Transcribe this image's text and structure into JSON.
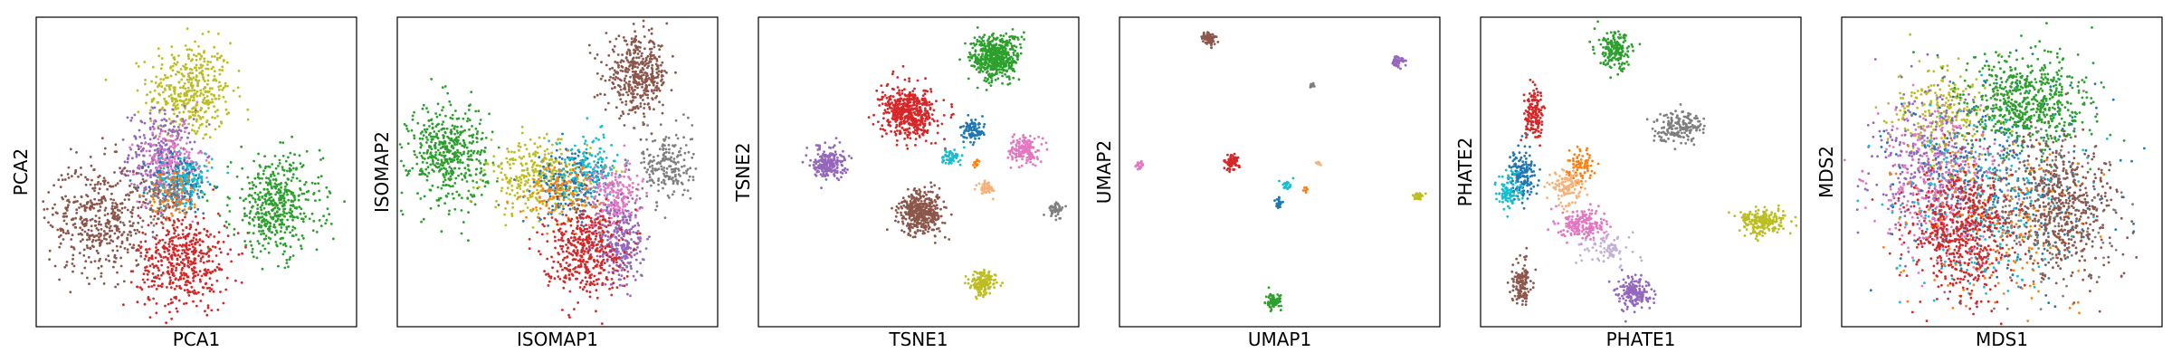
{
  "figure": {
    "description_free": true
  },
  "palette": {
    "blue": "#1f77b4",
    "orange": "#ff7f0e",
    "green": "#2ca02c",
    "red": "#d62728",
    "purple": "#9467bd",
    "brown": "#8c564b",
    "pink": "#e377c2",
    "gray": "#7f7f7f",
    "olive": "#bcbd22",
    "cyan": "#17becf"
  },
  "chart_data": [
    {
      "type": "scatter",
      "xlabel": "PCA1",
      "ylabel": "PCA2",
      "xlim": [
        0,
        1
      ],
      "ylim": [
        0,
        1
      ],
      "xticks": [],
      "yticks": [],
      "clusters": [
        {
          "color": "olive",
          "cx": 0.48,
          "cy": 0.76,
          "sx": 0.065,
          "sy": 0.08,
          "n": 420
        },
        {
          "color": "purple",
          "cx": 0.39,
          "cy": 0.56,
          "sx": 0.05,
          "sy": 0.07,
          "n": 260
        },
        {
          "color": "pink",
          "cx": 0.42,
          "cy": 0.52,
          "sx": 0.05,
          "sy": 0.06,
          "n": 220
        },
        {
          "color": "blue",
          "cx": 0.45,
          "cy": 0.46,
          "sx": 0.05,
          "sy": 0.05,
          "n": 160
        },
        {
          "color": "orange",
          "cx": 0.43,
          "cy": 0.43,
          "sx": 0.04,
          "sy": 0.04,
          "n": 100
        },
        {
          "color": "cyan",
          "cx": 0.47,
          "cy": 0.48,
          "sx": 0.04,
          "sy": 0.04,
          "n": 100
        },
        {
          "color": "gray",
          "cx": 0.4,
          "cy": 0.42,
          "sx": 0.04,
          "sy": 0.04,
          "n": 80
        },
        {
          "color": "brown",
          "cx": 0.2,
          "cy": 0.35,
          "sx": 0.08,
          "sy": 0.09,
          "n": 480
        },
        {
          "color": "red",
          "cx": 0.46,
          "cy": 0.21,
          "sx": 0.07,
          "sy": 0.08,
          "n": 480
        },
        {
          "color": "green",
          "cx": 0.75,
          "cy": 0.39,
          "sx": 0.07,
          "sy": 0.08,
          "n": 480
        }
      ]
    },
    {
      "type": "scatter",
      "xlabel": "ISOMAP1",
      "ylabel": "ISOMAP2",
      "xlim": [
        0,
        1
      ],
      "ylim": [
        0,
        1
      ],
      "xticks": [],
      "yticks": [],
      "clusters": [
        {
          "color": "brown",
          "cx": 0.75,
          "cy": 0.81,
          "sx": 0.05,
          "sy": 0.06,
          "n": 420
        },
        {
          "color": "green",
          "cx": 0.16,
          "cy": 0.56,
          "sx": 0.06,
          "sy": 0.08,
          "n": 480
        },
        {
          "color": "olive",
          "cx": 0.44,
          "cy": 0.48,
          "sx": 0.08,
          "sy": 0.06,
          "n": 320
        },
        {
          "color": "blue",
          "cx": 0.55,
          "cy": 0.46,
          "sx": 0.06,
          "sy": 0.06,
          "n": 200
        },
        {
          "color": "cyan",
          "cx": 0.6,
          "cy": 0.52,
          "sx": 0.05,
          "sy": 0.05,
          "n": 140
        },
        {
          "color": "orange",
          "cx": 0.52,
          "cy": 0.44,
          "sx": 0.06,
          "sy": 0.05,
          "n": 130
        },
        {
          "color": "pink",
          "cx": 0.68,
          "cy": 0.42,
          "sx": 0.04,
          "sy": 0.05,
          "n": 200
        },
        {
          "color": "gray",
          "cx": 0.84,
          "cy": 0.52,
          "sx": 0.04,
          "sy": 0.06,
          "n": 200
        },
        {
          "color": "purple",
          "cx": 0.7,
          "cy": 0.27,
          "sx": 0.035,
          "sy": 0.07,
          "n": 260
        },
        {
          "color": "red",
          "cx": 0.58,
          "cy": 0.25,
          "sx": 0.06,
          "sy": 0.07,
          "n": 440
        }
      ]
    },
    {
      "type": "scatter",
      "xlabel": "TSNE1",
      "ylabel": "TSNE2",
      "xlim": [
        0,
        1
      ],
      "ylim": [
        0,
        1
      ],
      "xticks": [],
      "yticks": [],
      "clusters": [
        {
          "color": "green",
          "cx": 0.74,
          "cy": 0.87,
          "sx": 0.038,
          "sy": 0.038,
          "n": 500
        },
        {
          "color": "red",
          "cx": 0.47,
          "cy": 0.69,
          "sx": 0.042,
          "sy": 0.04,
          "n": 520
        },
        {
          "color": "blue",
          "cx": 0.67,
          "cy": 0.63,
          "sx": 0.018,
          "sy": 0.018,
          "n": 90
        },
        {
          "color": "cyan",
          "cx": 0.6,
          "cy": 0.55,
          "sx": 0.015,
          "sy": 0.015,
          "n": 60
        },
        {
          "color": "orange",
          "cx": 0.68,
          "cy": 0.53,
          "sx": 0.005,
          "sy": 0.005,
          "n": 12
        },
        {
          "color": "pink",
          "cx": 0.83,
          "cy": 0.57,
          "sx": 0.022,
          "sy": 0.022,
          "n": 160
        },
        {
          "color": "purple",
          "cx": 0.22,
          "cy": 0.53,
          "sx": 0.025,
          "sy": 0.025,
          "n": 220
        },
        {
          "color": "sandy",
          "cx": 0.71,
          "cy": 0.45,
          "sx": 0.012,
          "sy": 0.012,
          "n": 50
        },
        {
          "color": "brown",
          "cx": 0.51,
          "cy": 0.37,
          "sx": 0.035,
          "sy": 0.035,
          "n": 420
        },
        {
          "color": "gray",
          "cx": 0.93,
          "cy": 0.38,
          "sx": 0.012,
          "sy": 0.012,
          "n": 50
        },
        {
          "color": "olive",
          "cx": 0.7,
          "cy": 0.14,
          "sx": 0.02,
          "sy": 0.02,
          "n": 150
        }
      ]
    },
    {
      "type": "scatter",
      "xlabel": "UMAP1",
      "ylabel": "UMAP2",
      "xlim": [
        0,
        1
      ],
      "ylim": [
        0,
        1
      ],
      "xticks": [],
      "yticks": [],
      "clusters": [
        {
          "color": "brown",
          "cx": 0.28,
          "cy": 0.93,
          "sx": 0.012,
          "sy": 0.012,
          "n": 70
        },
        {
          "color": "purple",
          "cx": 0.87,
          "cy": 0.86,
          "sx": 0.009,
          "sy": 0.009,
          "n": 45
        },
        {
          "color": "gray",
          "cx": 0.6,
          "cy": 0.78,
          "sx": 0.005,
          "sy": 0.005,
          "n": 14
        },
        {
          "color": "pink",
          "cx": 0.06,
          "cy": 0.52,
          "sx": 0.007,
          "sy": 0.007,
          "n": 25
        },
        {
          "color": "red",
          "cx": 0.35,
          "cy": 0.53,
          "sx": 0.012,
          "sy": 0.012,
          "n": 80
        },
        {
          "color": "cyan",
          "cx": 0.52,
          "cy": 0.46,
          "sx": 0.008,
          "sy": 0.008,
          "n": 25
        },
        {
          "color": "orange",
          "cx": 0.58,
          "cy": 0.44,
          "sx": 0.004,
          "sy": 0.004,
          "n": 8
        },
        {
          "color": "sandy",
          "cx": 0.62,
          "cy": 0.53,
          "sx": 0.005,
          "sy": 0.005,
          "n": 10
        },
        {
          "color": "blue",
          "cx": 0.5,
          "cy": 0.4,
          "sx": 0.006,
          "sy": 0.008,
          "n": 25
        },
        {
          "color": "olive",
          "cx": 0.93,
          "cy": 0.42,
          "sx": 0.008,
          "sy": 0.006,
          "n": 30
        },
        {
          "color": "green",
          "cx": 0.48,
          "cy": 0.08,
          "sx": 0.012,
          "sy": 0.012,
          "n": 80
        }
      ]
    },
    {
      "type": "scatter",
      "xlabel": "PHATE1",
      "ylabel": "PHATE2",
      "xlim": [
        0,
        1
      ],
      "ylim": [
        0,
        1
      ],
      "xticks": [],
      "yticks": [],
      "clusters": [
        {
          "color": "green",
          "cx": 0.42,
          "cy": 0.89,
          "sx": 0.025,
          "sy": 0.03,
          "n": 180
        },
        {
          "color": "red",
          "cx": 0.17,
          "cy": 0.68,
          "sx": 0.015,
          "sy": 0.04,
          "n": 160
        },
        {
          "color": "gray",
          "cx": 0.62,
          "cy": 0.65,
          "sx": 0.04,
          "sy": 0.025,
          "n": 180
        },
        {
          "color": "blue",
          "cx": 0.13,
          "cy": 0.49,
          "sx": 0.02,
          "sy": 0.04,
          "n": 160
        },
        {
          "color": "cyan",
          "cx": 0.09,
          "cy": 0.44,
          "sx": 0.02,
          "sy": 0.03,
          "n": 100
        },
        {
          "color": "orange",
          "cx": 0.31,
          "cy": 0.52,
          "sx": 0.02,
          "sy": 0.03,
          "n": 80
        },
        {
          "color": "sandy",
          "cx": 0.27,
          "cy": 0.45,
          "sx": 0.025,
          "sy": 0.025,
          "n": 120
        },
        {
          "color": "pink",
          "cx": 0.32,
          "cy": 0.33,
          "sx": 0.035,
          "sy": 0.025,
          "n": 200
        },
        {
          "color": "lavender",
          "cx": 0.4,
          "cy": 0.25,
          "sx": 0.04,
          "sy": 0.025,
          "n": 80
        },
        {
          "color": "olive",
          "cx": 0.88,
          "cy": 0.34,
          "sx": 0.035,
          "sy": 0.02,
          "n": 220
        },
        {
          "color": "purple",
          "cx": 0.48,
          "cy": 0.11,
          "sx": 0.025,
          "sy": 0.025,
          "n": 180
        },
        {
          "color": "brown",
          "cx": 0.13,
          "cy": 0.14,
          "sx": 0.015,
          "sy": 0.04,
          "n": 130
        }
      ]
    },
    {
      "type": "scatter",
      "xlabel": "MDS1",
      "ylabel": "MDS2",
      "xlim": [
        0,
        1
      ],
      "ylim": [
        0,
        1
      ],
      "xticks": [],
      "yticks": [],
      "clusters": [
        {
          "color": "olive",
          "cx": 0.32,
          "cy": 0.68,
          "sx": 0.08,
          "sy": 0.09,
          "n": 260
        },
        {
          "color": "purple",
          "cx": 0.28,
          "cy": 0.52,
          "sx": 0.09,
          "sy": 0.12,
          "n": 360
        },
        {
          "color": "pink",
          "cx": 0.3,
          "cy": 0.45,
          "sx": 0.1,
          "sy": 0.12,
          "n": 320
        },
        {
          "color": "blue",
          "cx": 0.5,
          "cy": 0.45,
          "sx": 0.16,
          "sy": 0.16,
          "n": 320
        },
        {
          "color": "cyan",
          "cx": 0.45,
          "cy": 0.4,
          "sx": 0.14,
          "sy": 0.15,
          "n": 220
        },
        {
          "color": "orange",
          "cx": 0.5,
          "cy": 0.35,
          "sx": 0.14,
          "sy": 0.14,
          "n": 200
        },
        {
          "color": "gray",
          "cx": 0.62,
          "cy": 0.4,
          "sx": 0.12,
          "sy": 0.14,
          "n": 200
        },
        {
          "color": "green",
          "cx": 0.57,
          "cy": 0.72,
          "sx": 0.1,
          "sy": 0.08,
          "n": 600
        },
        {
          "color": "red",
          "cx": 0.38,
          "cy": 0.3,
          "sx": 0.08,
          "sy": 0.11,
          "n": 600
        },
        {
          "color": "brown",
          "cx": 0.7,
          "cy": 0.38,
          "sx": 0.08,
          "sy": 0.11,
          "n": 520
        }
      ]
    }
  ],
  "extra_colors": {
    "sandy": "#f5b27a",
    "lavender": "#c5b0d5"
  }
}
